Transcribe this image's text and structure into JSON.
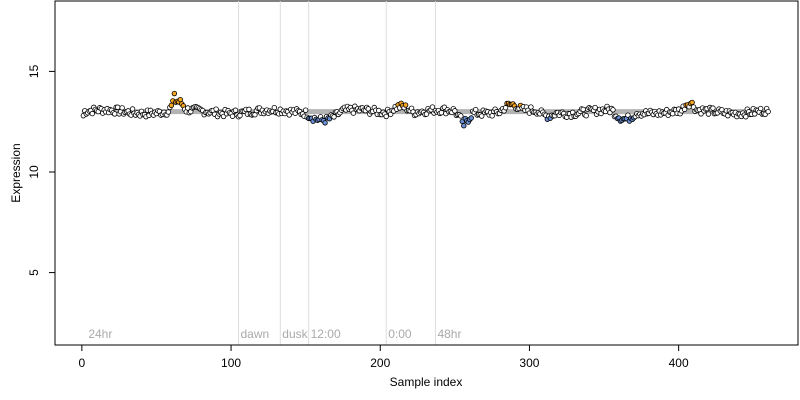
{
  "chart_data": {
    "type": "scatter",
    "title": "",
    "xlabel": "Sample index",
    "ylabel": "Expression",
    "xlim": [
      -18,
      480
    ],
    "ylim": [
      1.4,
      18.5
    ],
    "x_ticks": [
      0,
      100,
      200,
      300,
      400
    ],
    "y_ticks": [
      5,
      10,
      15
    ],
    "grid": false,
    "reference_line": {
      "y": 13.0,
      "color": "#b3b3b3"
    },
    "annotations": [
      {
        "x": 3,
        "label": "24hr"
      },
      {
        "x": 105,
        "label": "dawn"
      },
      {
        "x": 133,
        "label": "dusk"
      },
      {
        "x": 152,
        "label": "12:00"
      },
      {
        "x": 204,
        "label": "0:00"
      },
      {
        "x": 237,
        "label": "48hr"
      }
    ],
    "vlines": [
      105,
      133,
      152,
      204,
      237
    ],
    "colors": {
      "default": "#ffffff",
      "high": "#f6a623",
      "low": "#6b8fd6"
    },
    "point_count": 460,
    "y_start": 12.8,
    "y_end": 13.0,
    "y_min": 12.3,
    "y_max": 13.9
  }
}
